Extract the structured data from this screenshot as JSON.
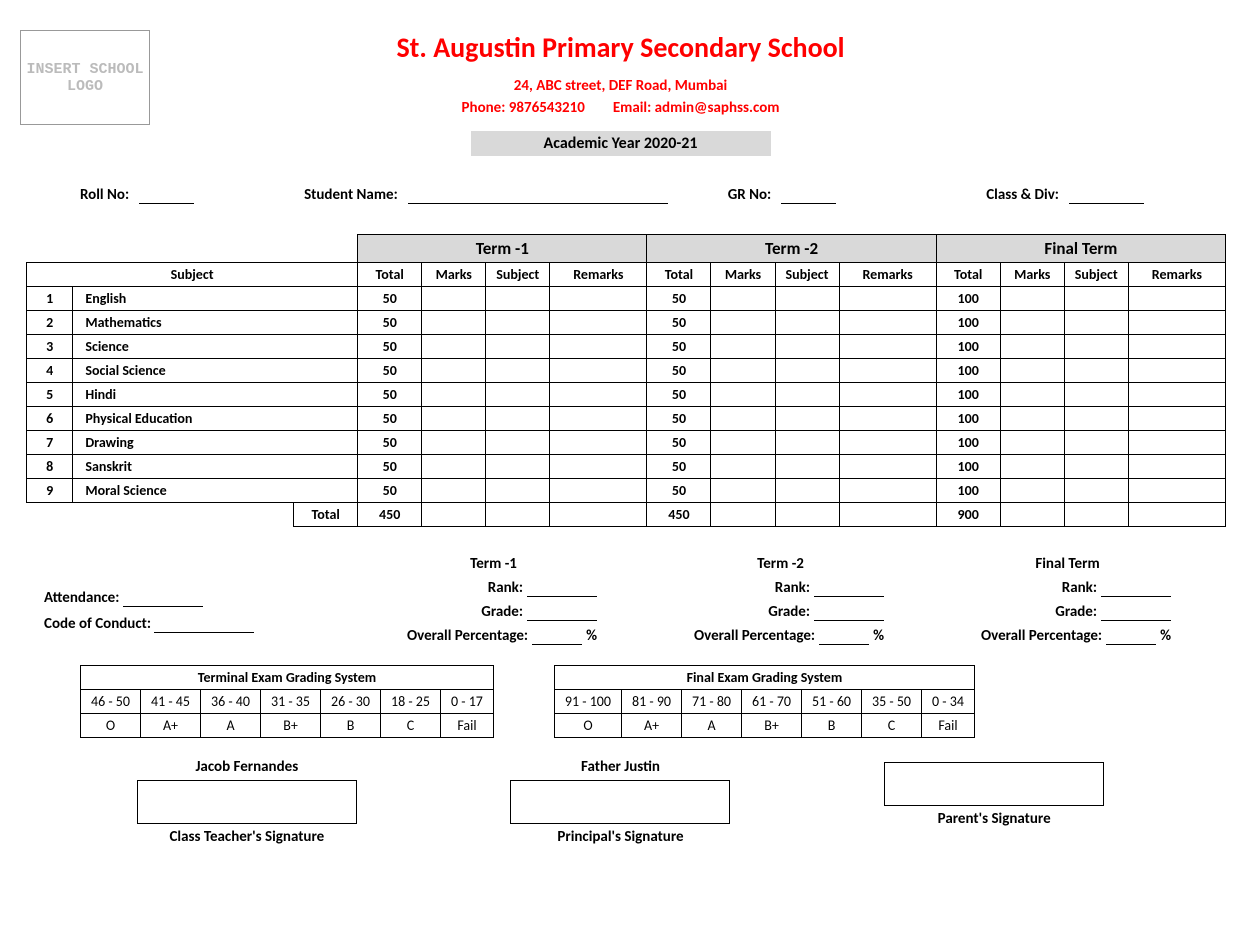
{
  "header": {
    "logo_placeholder": "INSERT SCHOOL LOGO",
    "school_name": "St. Augustin Primary Secondary School",
    "address": "24, ABC street, DEF Road, Mumbai",
    "phone_label": "Phone:",
    "phone": "9876543210",
    "email_label": "Email:",
    "email": "admin@saphss.com",
    "academic_year": "Academic Year 2020-21"
  },
  "student": {
    "roll_label": "Roll No:",
    "name_label": "Student Name:",
    "gr_label": "GR No:",
    "class_label": "Class & Div:"
  },
  "marks": {
    "subject_hdr": "Subject",
    "term1": "Term -1",
    "term2": "Term -2",
    "final": "Final Term",
    "cols": {
      "total": "Total",
      "marks": "Marks",
      "subject": "Subject",
      "remarks": "Remarks"
    },
    "rows": [
      {
        "n": "1",
        "subj": "English",
        "t1": "50",
        "t2": "50",
        "f": "100"
      },
      {
        "n": "2",
        "subj": "Mathematics",
        "t1": "50",
        "t2": "50",
        "f": "100"
      },
      {
        "n": "3",
        "subj": "Science",
        "t1": "50",
        "t2": "50",
        "f": "100"
      },
      {
        "n": "4",
        "subj": "Social Science",
        "t1": "50",
        "t2": "50",
        "f": "100"
      },
      {
        "n": "5",
        "subj": "Hindi",
        "t1": "50",
        "t2": "50",
        "f": "100"
      },
      {
        "n": "6",
        "subj": "Physical Education",
        "t1": "50",
        "t2": "50",
        "f": "100"
      },
      {
        "n": "7",
        "subj": "Drawing",
        "t1": "50",
        "t2": "50",
        "f": "100"
      },
      {
        "n": "8",
        "subj": "Sanskrit",
        "t1": "50",
        "t2": "50",
        "f": "100"
      },
      {
        "n": "9",
        "subj": "Moral Science",
        "t1": "50",
        "t2": "50",
        "f": "100"
      }
    ],
    "total_label": "Total",
    "totals": {
      "t1": "450",
      "t2": "450",
      "f": "900"
    }
  },
  "summary": {
    "attendance_label": "Attendance:",
    "conduct_label": "Code of Conduct:",
    "rank_label": "Rank:",
    "grade_label": "Grade:",
    "pct_label": "Overall Percentage:",
    "pct_suffix": "%"
  },
  "grading": {
    "terminal_title": "Terminal Exam Grading System",
    "final_title": "Final Exam Grading System",
    "terminal_ranges": [
      "46 - 50",
      "41 - 45",
      "36 - 40",
      "31 - 35",
      "26 - 30",
      "18 - 25",
      "0 - 17"
    ],
    "final_ranges": [
      "91 - 100",
      "81 - 90",
      "71 - 80",
      "61 - 70",
      "51 - 60",
      "35 - 50",
      "0 - 34"
    ],
    "grades": [
      "O",
      "A+",
      "A",
      "B+",
      "B",
      "C",
      "Fail"
    ]
  },
  "signatures": {
    "teacher_name": "Jacob Fernandes",
    "teacher_label": "Class Teacher's Signature",
    "principal_name": "Father Justin",
    "principal_label": "Principal's Signature",
    "parent_name": "",
    "parent_label": "Parent's Signature"
  }
}
